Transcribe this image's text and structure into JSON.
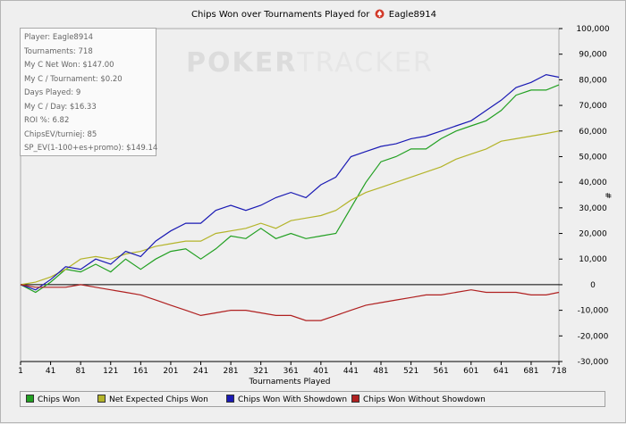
{
  "title_text": "Chips Won over Tournaments Played for",
  "player_name": "Eagle8914",
  "watermark": {
    "bold": "POKER",
    "light": "TRACKER"
  },
  "stats_box": [
    "Player: Eagle8914",
    "Tournaments: 718",
    "My C Net Won: $147.00",
    "My C / Tournament: $0.20",
    "Days Played: 9",
    "My C / Day: $16.33",
    "ROI %: 6.82",
    "ChipsEV/turniej: 85",
    "SP_EV(1-100+es+promo): $149.14"
  ],
  "colors": {
    "green": "#22a022",
    "olive": "#b4b42a",
    "blue": "#1a1ab4",
    "red": "#b02020",
    "zero_line": "#000000"
  },
  "chart_data": {
    "type": "line",
    "title": "Chips Won over Tournaments Played for Eagle8914",
    "xlabel": "Tournaments Played",
    "ylabel": "#",
    "xlim": [
      1,
      718
    ],
    "ylim": [
      -30000,
      100000
    ],
    "x_ticks": [
      1,
      41,
      81,
      121,
      161,
      201,
      241,
      281,
      321,
      361,
      401,
      441,
      481,
      521,
      561,
      601,
      641,
      681,
      718
    ],
    "y_ticks": [
      -30000,
      -20000,
      -10000,
      0,
      10000,
      20000,
      30000,
      40000,
      50000,
      60000,
      70000,
      80000,
      90000,
      100000
    ],
    "y_tick_labels": [
      "-30,000",
      "-20,000",
      "-10,000",
      "0",
      "10,000",
      "20,000",
      "30,000",
      "40,000",
      "50,000",
      "60,000",
      "70,000",
      "80,000",
      "90,000",
      "100,000"
    ],
    "legend_position": "bottom",
    "grid": false,
    "x": [
      1,
      21,
      41,
      61,
      81,
      101,
      121,
      141,
      161,
      181,
      201,
      221,
      241,
      261,
      281,
      301,
      321,
      341,
      361,
      381,
      401,
      421,
      441,
      461,
      481,
      501,
      521,
      541,
      561,
      581,
      601,
      621,
      641,
      661,
      681,
      701,
      718
    ],
    "series": [
      {
        "name": "Chips Won",
        "color": "#22a022",
        "values": [
          0,
          -3000,
          1000,
          6000,
          5000,
          8000,
          5000,
          10000,
          6000,
          10000,
          13000,
          14000,
          10000,
          14000,
          19000,
          18000,
          22000,
          18000,
          20000,
          18000,
          19000,
          20000,
          30000,
          40000,
          48000,
          50000,
          53000,
          53000,
          57000,
          60000,
          62000,
          64000,
          68000,
          74000,
          76000,
          76000,
          78000
        ]
      },
      {
        "name": "Net Expected Chips Won",
        "color": "#b4b42a",
        "values": [
          0,
          1000,
          3000,
          6000,
          10000,
          11000,
          10000,
          12000,
          13000,
          15000,
          16000,
          17000,
          17000,
          20000,
          21000,
          22000,
          24000,
          22000,
          25000,
          26000,
          27000,
          29000,
          33000,
          36000,
          38000,
          40000,
          42000,
          44000,
          46000,
          49000,
          51000,
          53000,
          56000,
          57000,
          58000,
          59000,
          60000
        ]
      },
      {
        "name": "Chips Won With Showdown",
        "color": "#1a1ab4",
        "values": [
          0,
          -2000,
          2000,
          7000,
          6000,
          10000,
          8000,
          13000,
          11000,
          17000,
          21000,
          24000,
          24000,
          29000,
          31000,
          29000,
          31000,
          34000,
          36000,
          34000,
          39000,
          42000,
          50000,
          52000,
          54000,
          55000,
          57000,
          58000,
          60000,
          62000,
          64000,
          68000,
          72000,
          77000,
          79000,
          82000,
          81000
        ]
      },
      {
        "name": "Chips Won Without Showdown",
        "color": "#b02020",
        "values": [
          0,
          -1000,
          -1000,
          -1000,
          0,
          -1000,
          -2000,
          -3000,
          -4000,
          -6000,
          -8000,
          -10000,
          -12000,
          -11000,
          -10000,
          -10000,
          -11000,
          -12000,
          -12000,
          -14000,
          -14000,
          -12000,
          -10000,
          -8000,
          -7000,
          -6000,
          -5000,
          -4000,
          -4000,
          -3000,
          -2000,
          -3000,
          -3000,
          -3000,
          -4000,
          -4000,
          -3000
        ]
      }
    ]
  }
}
